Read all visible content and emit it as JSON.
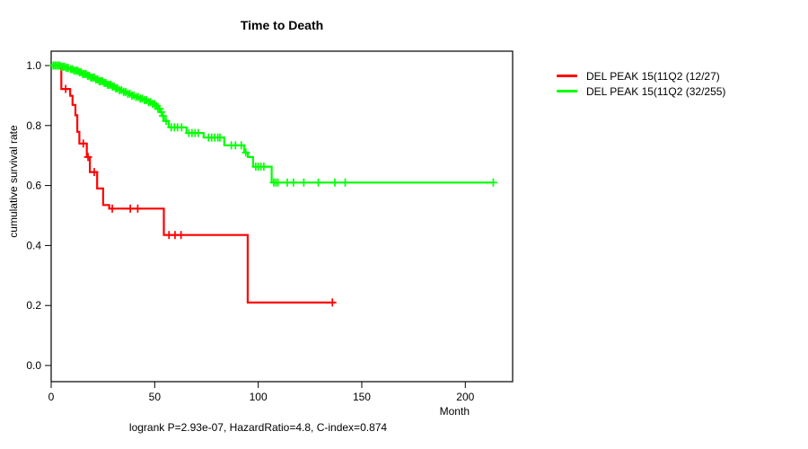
{
  "chart_data": {
    "type": "line",
    "subtype": "kaplan-meier-survival-step",
    "title": "Time to Death",
    "xlabel": "Month",
    "ylabel": "cumulative survival rate",
    "annotation": "logrank P=2.93e-07, HazardRatio=4.8, C-index=0.874",
    "xlim": [
      0,
      222
    ],
    "ylim": [
      0.0,
      1.0
    ],
    "x_ticks": [
      0,
      50,
      100,
      150,
      200
    ],
    "y_ticks": [
      0.0,
      0.2,
      0.4,
      0.6,
      0.8,
      1.0
    ],
    "grid": false,
    "legend_position": "right-outside",
    "axis_color": "#000000",
    "series": [
      {
        "name": "DEL PEAK 15(11Q2 (12/27)",
        "color": "#ff0000",
        "events_total": "12/27",
        "steps": [
          [
            0,
            1.0
          ],
          [
            4.9,
            0.922
          ],
          [
            9.2,
            0.899
          ],
          [
            10.3,
            0.869
          ],
          [
            11.7,
            0.834
          ],
          [
            12.6,
            0.779
          ],
          [
            13.6,
            0.74
          ],
          [
            17.2,
            0.695
          ],
          [
            18.7,
            0.645
          ],
          [
            22.2,
            0.59
          ],
          [
            25.1,
            0.535
          ],
          [
            28,
            0.523
          ],
          [
            54.4,
            0.435
          ],
          [
            94.9,
            0.21
          ]
        ],
        "end_month": 137,
        "censor_marks": [
          7,
          15.5,
          17.8,
          20.8,
          29.5,
          38.2,
          41.8,
          56.9,
          59.8,
          62.7,
          135.8
        ]
      },
      {
        "name": "DEL PEAK 15(11Q2 (32/255)",
        "color": "#00ff00",
        "events_total": "32/255",
        "steps": [
          [
            0,
            1.0
          ],
          [
            5,
            0.996
          ],
          [
            7,
            0.992
          ],
          [
            9,
            0.988
          ],
          [
            11,
            0.983
          ],
          [
            13,
            0.978
          ],
          [
            15,
            0.972
          ],
          [
            17,
            0.966
          ],
          [
            19,
            0.96
          ],
          [
            21,
            0.954
          ],
          [
            23,
            0.948
          ],
          [
            25,
            0.942
          ],
          [
            27,
            0.936
          ],
          [
            29,
            0.93
          ],
          [
            31,
            0.924
          ],
          [
            33,
            0.918
          ],
          [
            35,
            0.912
          ],
          [
            37,
            0.906
          ],
          [
            39,
            0.9
          ],
          [
            41,
            0.895
          ],
          [
            43,
            0.89
          ],
          [
            45,
            0.885
          ],
          [
            47,
            0.878
          ],
          [
            49,
            0.872
          ],
          [
            50.5,
            0.865
          ],
          [
            51.5,
            0.856
          ],
          [
            52.5,
            0.845
          ],
          [
            53.5,
            0.832
          ],
          [
            54.5,
            0.815
          ],
          [
            56.8,
            0.794
          ],
          [
            65.4,
            0.775
          ],
          [
            73.6,
            0.76
          ],
          [
            83.6,
            0.734
          ],
          [
            93.2,
            0.71
          ],
          [
            95,
            0.695
          ],
          [
            97.5,
            0.663
          ],
          [
            106.5,
            0.61
          ]
        ],
        "end_month": 213.5,
        "censor_marks": [
          1,
          1.8,
          2.6,
          3.4,
          4.2,
          5,
          5.8,
          6.6,
          7.4,
          8.2,
          9.5,
          10.3,
          11.1,
          12,
          12.8,
          13.6,
          14.4,
          15.2,
          16,
          16.8,
          17.6,
          18.4,
          19.2,
          20,
          20.8,
          21.6,
          22.4,
          23.2,
          24,
          24.8,
          25.6,
          26.4,
          27.2,
          28,
          28.8,
          29.6,
          30.4,
          31.2,
          32,
          33,
          34,
          35,
          36,
          37,
          38,
          39,
          40,
          41,
          42,
          43,
          44,
          45,
          46,
          47,
          48,
          49,
          50,
          50.8,
          51.6,
          52.4,
          53.2,
          54,
          55.5,
          58,
          59.5,
          61,
          63,
          66.5,
          68,
          69.5,
          71,
          76,
          77.5,
          79,
          80.5,
          81.5,
          87,
          89,
          91.8,
          94,
          98.8,
          100,
          101.3,
          102.7,
          107.5,
          108.5,
          109.5,
          114,
          117,
          122,
          129,
          137,
          142,
          213.5
        ]
      }
    ]
  }
}
